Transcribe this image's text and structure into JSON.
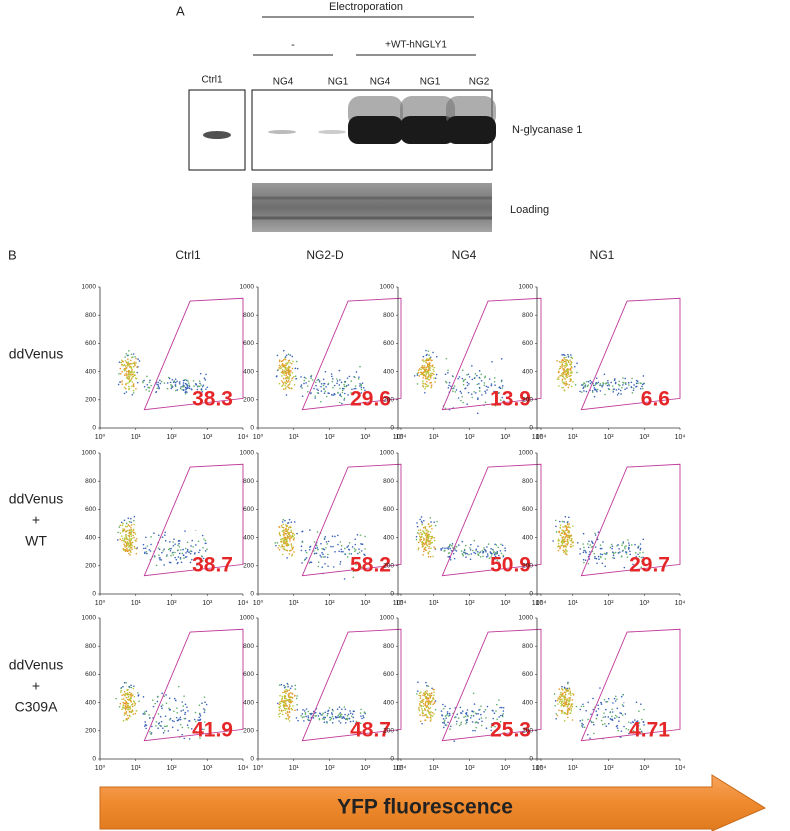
{
  "panel_a": {
    "label": "A",
    "group_label": "Electroporation",
    "subgroups": [
      "-",
      "+WT-hNGLY1"
    ],
    "ctrl_lane": "Ctrl1",
    "lanes": [
      "NG4",
      "NG1",
      "NG4",
      "NG1",
      "NG2"
    ],
    "band_label": "N-glycanase 1",
    "loading_label": "Loading"
  },
  "panel_b": {
    "label": "B",
    "columns": [
      "Ctrl1",
      "NG2-D",
      "NG4",
      "NG1"
    ],
    "rows": [
      [
        "ddVenus"
      ],
      [
        "ddVenus",
        "+",
        "WT"
      ],
      [
        "ddVenus",
        "+",
        "C309A"
      ]
    ],
    "percentages": [
      [
        "38.3",
        "29.6",
        "13.9",
        "6.6"
      ],
      [
        "38.7",
        "58.2",
        "50.9",
        "29.7"
      ],
      [
        "41.9",
        "48.7",
        "25.3",
        "4.71"
      ]
    ],
    "y_ticks": [
      0,
      200,
      400,
      600,
      800,
      1000
    ],
    "x_ticks": [
      "10⁰",
      "10¹",
      "10²",
      "10³",
      "10⁴"
    ],
    "x_label": "YFP fluorescence"
  }
}
